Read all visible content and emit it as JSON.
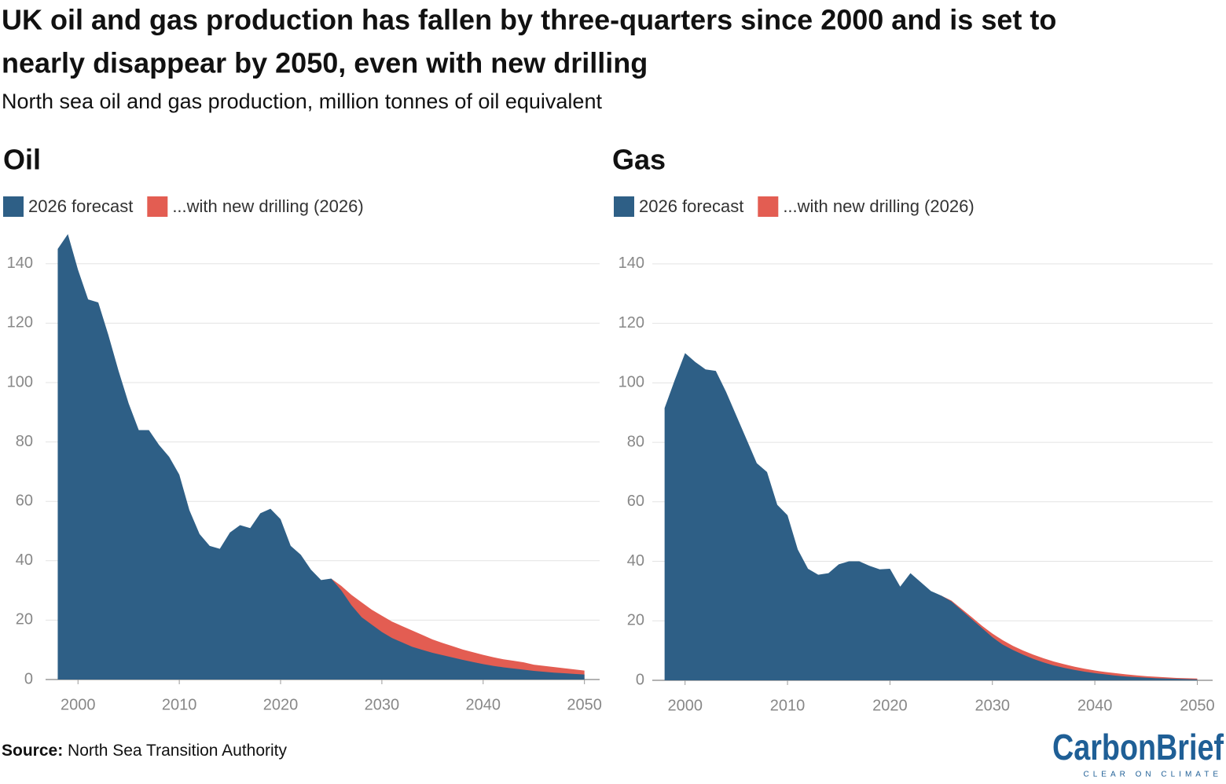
{
  "title_line1": "UK oil and gas production has fallen by three-quarters since 2000 and is set to",
  "title_line2": "nearly disappear by 2050, even with new drilling",
  "subtitle": "North sea oil and gas production, million tonnes of oil equivalent",
  "source_label": "Source:",
  "source": "North Sea Transition Authority",
  "logo": "CarbonBrief",
  "logo_tagline": "CLEAR ON CLIMATE",
  "chart_data": [
    {
      "type": "area",
      "title": "Oil",
      "x": [
        1998,
        1999,
        2000,
        2001,
        2002,
        2003,
        2004,
        2005,
        2006,
        2007,
        2008,
        2009,
        2010,
        2011,
        2012,
        2013,
        2014,
        2015,
        2016,
        2017,
        2018,
        2019,
        2020,
        2021,
        2022,
        2023,
        2024,
        2025,
        2026,
        2027,
        2028,
        2029,
        2030,
        2031,
        2032,
        2033,
        2034,
        2035,
        2036,
        2037,
        2038,
        2039,
        2040,
        2041,
        2042,
        2043,
        2044,
        2045,
        2046,
        2047,
        2048,
        2049,
        2050
      ],
      "series": [
        {
          "name": "...with new drilling (2026)",
          "color": "#e35d52",
          "values": [
            null,
            null,
            null,
            null,
            null,
            null,
            null,
            null,
            null,
            null,
            null,
            null,
            null,
            null,
            null,
            null,
            null,
            null,
            null,
            null,
            null,
            null,
            null,
            null,
            null,
            null,
            null,
            34,
            31.5,
            28.5,
            26,
            23.5,
            21.5,
            19.5,
            18,
            16.5,
            15,
            13.5,
            12.3,
            11.2,
            10.1,
            9.2,
            8.3,
            7.5,
            6.8,
            6.3,
            5.8,
            5,
            4.6,
            4.2,
            3.8,
            3.4,
            3.0
          ]
        },
        {
          "name": "2026 forecast",
          "color": "#2e5f86",
          "values": [
            145,
            150,
            138,
            128,
            127,
            116,
            104,
            93,
            84,
            84,
            79,
            75,
            69,
            57,
            49,
            45,
            44,
            49.5,
            52,
            51,
            56,
            57.5,
            54,
            45,
            42,
            37,
            33.5,
            34,
            30,
            25,
            21,
            18.5,
            16,
            14,
            12.5,
            11,
            10,
            9,
            8.2,
            7.4,
            6.6,
            5.9,
            5.2,
            4.6,
            4.1,
            3.7,
            3.3,
            2.9,
            2.6,
            2.3,
            2.1,
            1.9,
            1.7
          ]
        }
      ],
      "xlim": [
        1996.8,
        2051.5
      ],
      "xticks": [
        2000,
        2010,
        2020,
        2030,
        2040,
        2050
      ],
      "ylim": [
        0,
        150
      ],
      "yticks": [
        0,
        20,
        40,
        60,
        80,
        100,
        120,
        140
      ],
      "grid": true
    },
    {
      "type": "area",
      "title": "Gas",
      "x": [
        1998,
        1999,
        2000,
        2001,
        2002,
        2003,
        2004,
        2005,
        2006,
        2007,
        2008,
        2009,
        2010,
        2011,
        2012,
        2013,
        2014,
        2015,
        2016,
        2017,
        2018,
        2019,
        2020,
        2021,
        2022,
        2023,
        2024,
        2025,
        2026,
        2027,
        2028,
        2029,
        2030,
        2031,
        2032,
        2033,
        2034,
        2035,
        2036,
        2037,
        2038,
        2039,
        2040,
        2041,
        2042,
        2043,
        2044,
        2045,
        2046,
        2047,
        2048,
        2049,
        2050
      ],
      "series": [
        {
          "name": "...with new drilling (2026)",
          "color": "#e35d52",
          "values": [
            null,
            null,
            null,
            null,
            null,
            null,
            null,
            null,
            null,
            null,
            null,
            null,
            null,
            null,
            null,
            null,
            null,
            null,
            null,
            null,
            null,
            null,
            null,
            null,
            null,
            null,
            null,
            28.5,
            26.8,
            24,
            21.2,
            18.3,
            15.7,
            13.5,
            11.6,
            10,
            8.6,
            7.4,
            6.3,
            5.4,
            4.6,
            3.9,
            3.3,
            2.8,
            2.4,
            2,
            1.7,
            1.4,
            1.2,
            1,
            0.8,
            0.7,
            0.6
          ]
        },
        {
          "name": "2026 forecast",
          "color": "#2e5f86",
          "values": [
            91.5,
            101,
            110,
            107,
            104.5,
            104,
            97,
            89,
            81,
            73,
            70,
            59,
            55.5,
            44,
            37.5,
            35.5,
            36,
            39,
            40,
            40,
            38.5,
            37.3,
            37.5,
            31.5,
            36,
            33,
            30,
            28.5,
            26.5,
            23.5,
            20.5,
            17.5,
            14.5,
            12,
            10.2,
            8.6,
            7.2,
            6,
            5,
            4.2,
            3.5,
            2.9,
            2.4,
            2,
            1.6,
            1.3,
            1.1,
            0.9,
            0.7,
            0.6,
            0.5,
            0.4,
            0.3
          ]
        }
      ],
      "xlim": [
        1996.8,
        2051.5
      ],
      "xticks": [
        2000,
        2010,
        2020,
        2030,
        2040,
        2050
      ],
      "ylim": [
        0,
        150
      ],
      "yticks": [
        0,
        20,
        40,
        60,
        80,
        100,
        120,
        140
      ],
      "grid": true
    }
  ]
}
